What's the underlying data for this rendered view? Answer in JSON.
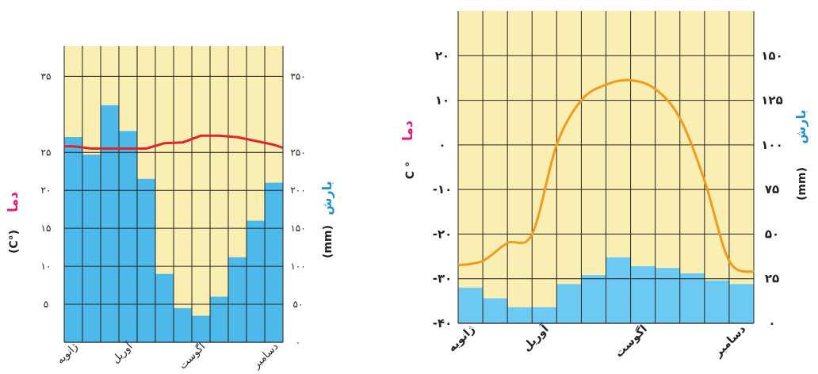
{
  "colors": {
    "background": "#fbeeb2",
    "bar": "#4db8ea",
    "bar_light": "#6ccaf2",
    "grid": "#222222",
    "temp_line_left": "#e3232c",
    "temp_line_right": "#f39a1e",
    "temp_label": "#e8177d",
    "precip_label": "#1c8fd6"
  },
  "chart_data": [
    {
      "type": "bar",
      "months": 12,
      "month_labels": [
        "ژانویه",
        "آوریل",
        "اگوست",
        "دسامبر"
      ],
      "month_label_positions": [
        1,
        4,
        8,
        12
      ],
      "precip_title": "بارش",
      "precip_unit": "(mm)",
      "precip_ticks": [
        "۳۵۰",
        "۲۵۰",
        "۲۰۰",
        "۱۵۰",
        "۱۰۰",
        "۵۰",
        "۰"
      ],
      "precip_tick_values": [
        350,
        250,
        200,
        150,
        100,
        50,
        0
      ],
      "precip_ylim": [
        0,
        390
      ],
      "precip_values": [
        270,
        247,
        312,
        278,
        215,
        90,
        45,
        35,
        60,
        112,
        160,
        210
      ],
      "temp_title": "دما",
      "temp_unit": "(C°)",
      "temp_ticks": [
        "۳۵",
        "۲۵",
        "۲۰",
        "۱۵",
        "۱۰",
        "۵"
      ],
      "temp_tick_positions": [
        350,
        250,
        200,
        150,
        100,
        50
      ],
      "temp_values_precip_scale": [
        258,
        255,
        255,
        255,
        255,
        262,
        263,
        272,
        272,
        270,
        265,
        260
      ]
    },
    {
      "type": "bar",
      "months": 12,
      "month_labels": [
        "ژانویه",
        "آوریل",
        "اگوست",
        "دسامبر"
      ],
      "month_label_positions": [
        1,
        4,
        8,
        12
      ],
      "temp_title": "دما",
      "temp_unit": "C °",
      "temp_ticks": [
        "۲۰",
        "۱۰",
        "۰",
        "-۱۰",
        "-۲۰",
        "-۳۰",
        "-۴۰"
      ],
      "temp_tick_values": [
        20,
        10,
        0,
        -10,
        -20,
        -30,
        -40
      ],
      "temp_ylim": [
        -40,
        30
      ],
      "temp_values": [
        -27,
        -26,
        -22,
        -20,
        0,
        10,
        13.5,
        14.5,
        12.5,
        6,
        -8,
        -26,
        -28.5
      ],
      "temp_value_positions": [
        0,
        1,
        2,
        3,
        4,
        5,
        6,
        7,
        8,
        9,
        10,
        11,
        12
      ],
      "precip_title": "بارش",
      "precip_unit": "(mm)",
      "precip_ticks": [
        "۱۵۰",
        "۱۲۵",
        "۱۰۰",
        "۷۵",
        "۵۰",
        "۲۵",
        "۰"
      ],
      "precip_tick_values": [
        150,
        125,
        100,
        75,
        50,
        25,
        0
      ],
      "precip_values": [
        20,
        14,
        9,
        9,
        22,
        27,
        37,
        32,
        31,
        28,
        24,
        22
      ]
    }
  ]
}
